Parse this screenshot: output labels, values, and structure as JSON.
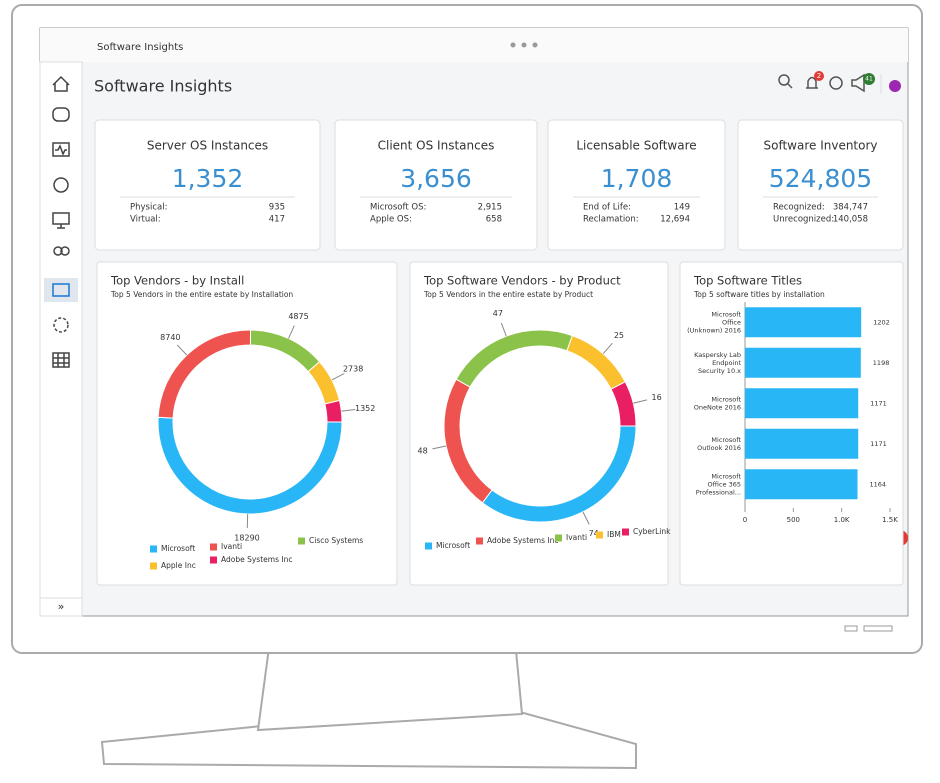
{
  "window_title": "Software Insights",
  "header": {
    "title": "Software Insights",
    "notification_badge": "2",
    "announcement_badge": "41"
  },
  "sidebar": {
    "expand": "»"
  },
  "cards": [
    {
      "title": "Server OS Instances",
      "total": "1,352",
      "rows": [
        {
          "label": "Physical:",
          "value": "935"
        },
        {
          "label": "Virtual:",
          "value": "417"
        }
      ]
    },
    {
      "title": "Client OS Instances",
      "total": "3,656",
      "rows": [
        {
          "label": "Microsoft OS:",
          "value": "2,915"
        },
        {
          "label": "Apple OS:",
          "value": "658"
        }
      ]
    },
    {
      "title": "Licensable Software",
      "total": "1,708",
      "rows": [
        {
          "label": "End of Life:",
          "value": "149"
        },
        {
          "label": "Reclamation:",
          "value": "12,694"
        }
      ]
    },
    {
      "title": "Software Inventory",
      "total": "524,805",
      "rows": [
        {
          "label": "Recognized:",
          "value": "384,747"
        },
        {
          "label": "Unrecognized:",
          "value": "140,058"
        }
      ]
    }
  ],
  "charts": [
    {
      "type": "donut",
      "title": "Top Vendors - by Install",
      "subtitle": "Top 5 Vendors in the entire estate by Installation",
      "categories": [
        "Microsoft",
        "Ivanti",
        "Cisco Systems",
        "Apple Inc",
        "Adobe Systems Inc"
      ],
      "values": [
        18290,
        8740,
        4875,
        2738,
        1352
      ],
      "colors": [
        "#29b6f6",
        "#ef5350",
        "#8bc34a",
        "#fbc02d",
        "#e91e63"
      ]
    },
    {
      "type": "donut",
      "title": "Top Software Vendors - by Product",
      "subtitle": "Top 5 Vendors in the entire estate by Product",
      "categories": [
        "Microsoft",
        "Adobe Systems Inc",
        "Ivanti",
        "IBM",
        "CyberLink"
      ],
      "values": [
        74,
        48,
        47,
        25,
        16
      ],
      "colors": [
        "#29b6f6",
        "#ef5350",
        "#8bc34a",
        "#fbc02d",
        "#e91e63"
      ]
    },
    {
      "type": "hbar",
      "title": "Top Software Titles",
      "subtitle": "Top 5 software titles by installation",
      "categories": [
        [
          "Microsoft",
          "Office",
          "(Unknown) 2016"
        ],
        [
          "Kaspersky Lab",
          "Endpoint",
          "Security 10.x"
        ],
        [
          "Microsoft",
          "OneNote 2016"
        ],
        [
          "Microsoft",
          "Outlook 2016"
        ],
        [
          "Microsoft",
          "Office 365",
          "Professional..."
        ]
      ],
      "values": [
        1202,
        1198,
        1171,
        1171,
        1164
      ],
      "color": "#29b6f6",
      "xlim": [
        0,
        1500
      ],
      "xticks": [
        0,
        500,
        {
          "value": 1000,
          "label": "1.0K"
        },
        {
          "value": 1500,
          "label": "1.5K"
        }
      ]
    }
  ]
}
